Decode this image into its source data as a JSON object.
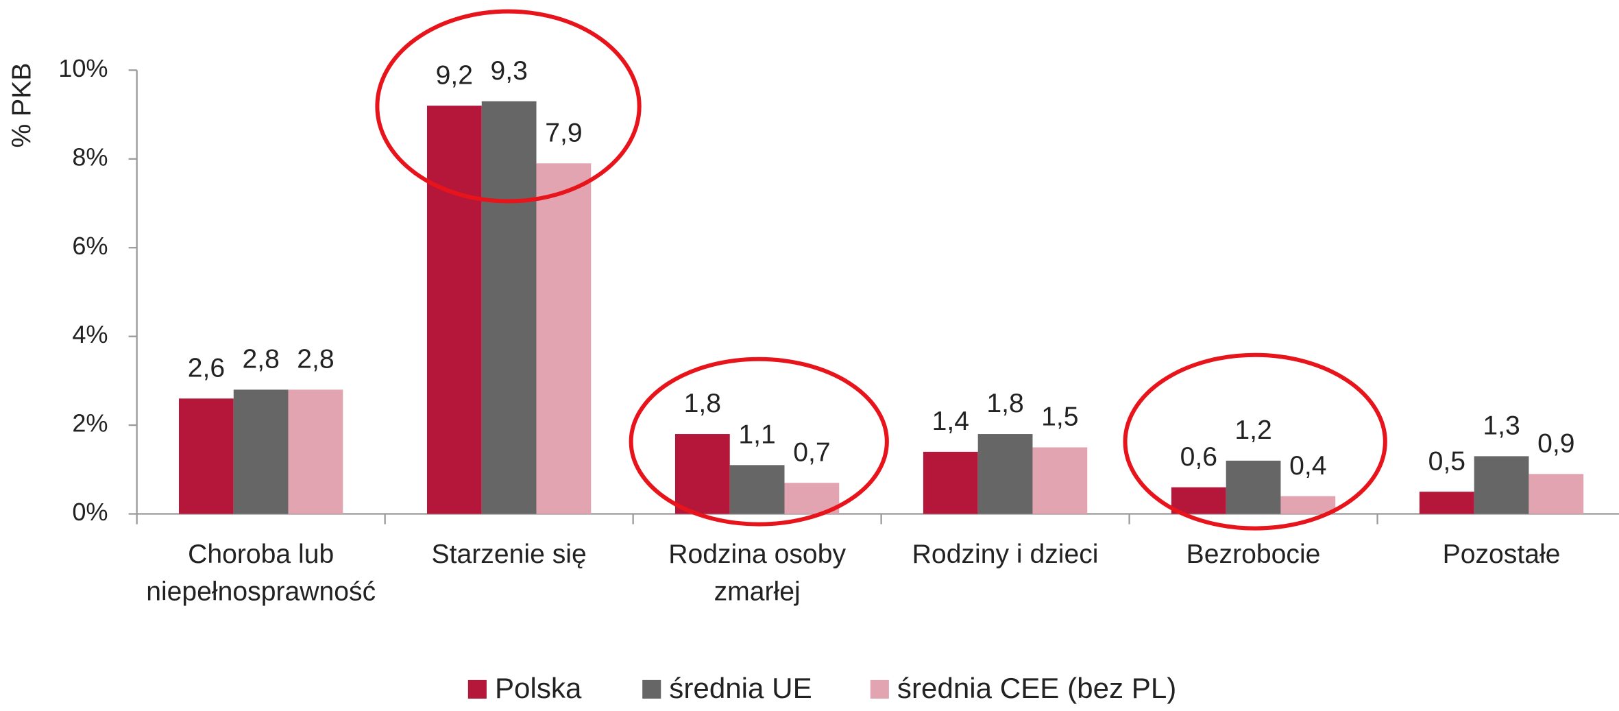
{
  "chart_data": {
    "type": "bar",
    "ylabel": "% PKB",
    "categories": [
      "Choroba lub niepełnosprawność",
      "Starzenie się",
      "Rodzina osoby zmarłej",
      "Rodziny i dzieci",
      "Bezrobocie",
      "Pozostałe"
    ],
    "series": [
      {
        "name": "Polska",
        "color": "#b5173b",
        "values": [
          2.6,
          9.2,
          1.8,
          1.4,
          0.6,
          0.5
        ],
        "value_labels": [
          "2,6",
          "9,2",
          "1,8",
          "1,4",
          "0,6",
          "0,5"
        ]
      },
      {
        "name": "średnia UE",
        "color": "#666666",
        "values": [
          2.8,
          9.3,
          1.1,
          1.8,
          1.2,
          1.3
        ],
        "value_labels": [
          "2,8",
          "9,3",
          "1,1",
          "1,8",
          "1,2",
          "1,3"
        ]
      },
      {
        "name": "średnia CEE (bez PL)",
        "color": "#e3a4b2",
        "values": [
          2.8,
          7.9,
          0.7,
          1.5,
          0.4,
          0.9
        ],
        "value_labels": [
          "2,8",
          "7,9",
          "0,7",
          "1,5",
          "0,4",
          "0,9"
        ]
      }
    ],
    "ylim": [
      0,
      10
    ],
    "yticks": [
      {
        "value": 0,
        "label": "0%"
      },
      {
        "value": 2,
        "label": "2%"
      },
      {
        "value": 4,
        "label": "4%"
      },
      {
        "value": 6,
        "label": "6%"
      },
      {
        "value": 8,
        "label": "8%"
      },
      {
        "value": 10,
        "label": "10%"
      }
    ],
    "legend": "bottom"
  }
}
